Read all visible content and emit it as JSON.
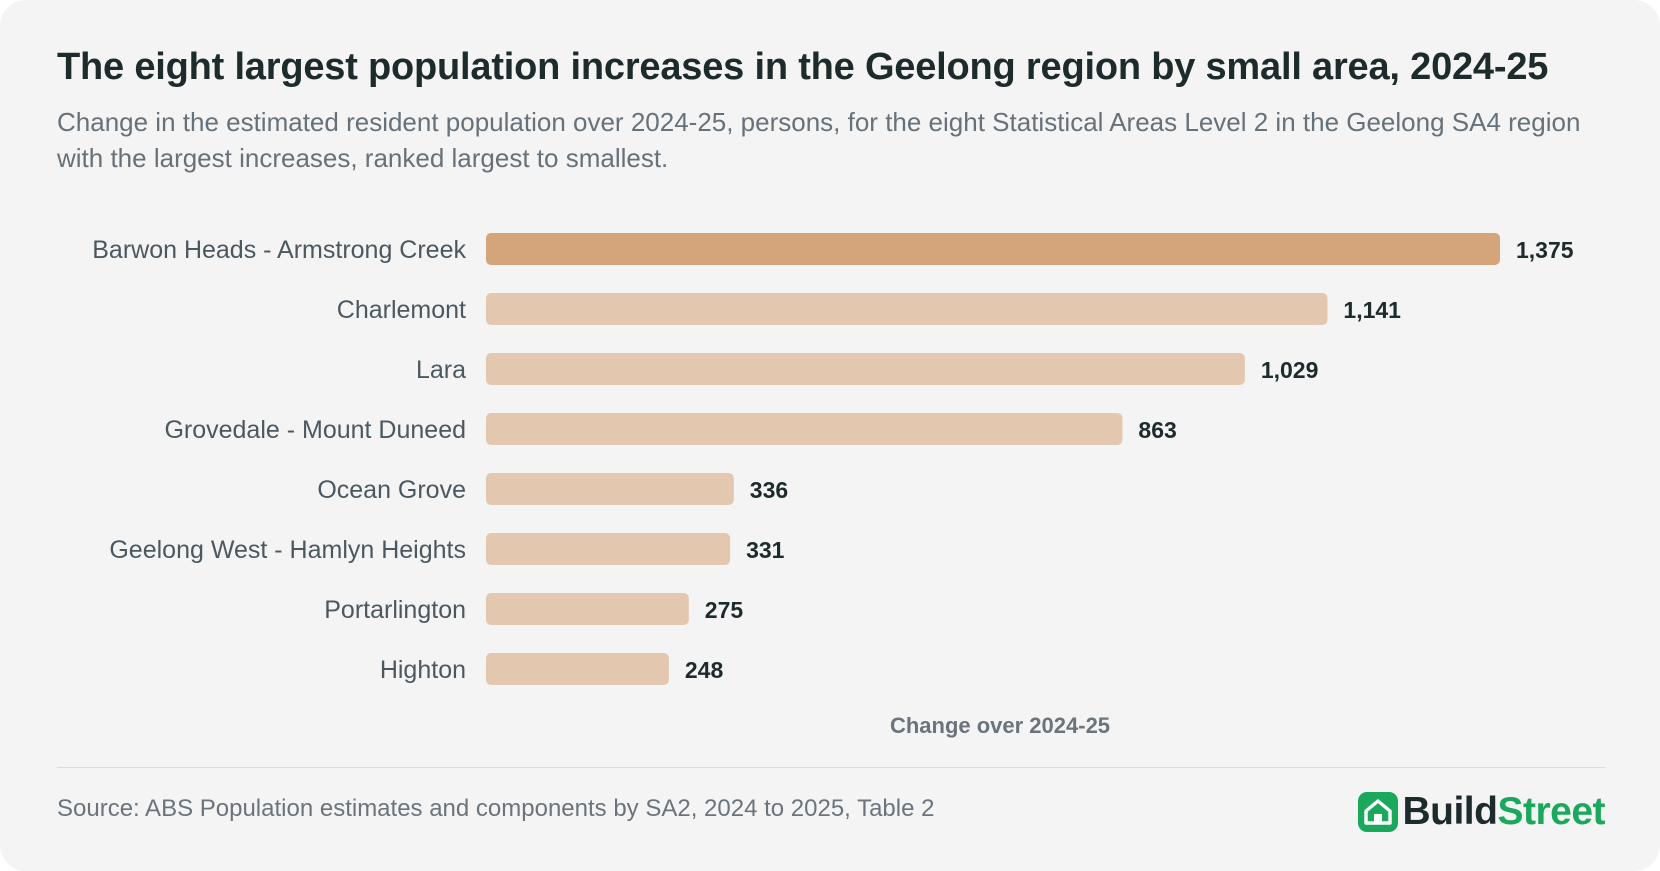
{
  "title": "The eight largest population increases in the Geelong region by small area, 2024-25",
  "subtitle": "Change in the estimated resident population over 2024-25, persons, for the eight Statistical Areas Level 2 in the Geelong SA4 region with the largest increases, ranked largest to smallest.",
  "source": "Source: ABS Population estimates and components by SA2, 2024 to 2025, Table 2",
  "brand": {
    "part1": "Build",
    "part2": "Street",
    "icon": "house-icon",
    "color": "#1aa85c"
  },
  "colors": {
    "highlight_bar": "#d4a57a",
    "bar": "#e3c7ae",
    "background": "#f4f4f4"
  },
  "chart_data": {
    "type": "bar",
    "orientation": "horizontal",
    "title": "The eight largest population increases in the Geelong region by small area, 2024-25",
    "subtitle": "Change in the estimated resident population over 2024-25, persons, for the eight Statistical Areas Level 2 in the Geelong SA4 region with the largest increases, ranked largest to smallest.",
    "xlabel": "Change over 2024-25",
    "ylabel": "",
    "categories": [
      "Barwon Heads - Armstrong Creek",
      "Charlemont",
      "Lara",
      "Grovedale - Mount Duneed",
      "Ocean Grove",
      "Geelong West - Hamlyn Heights",
      "Portarlington",
      "Highton"
    ],
    "values": [
      1375,
      1141,
      1029,
      863,
      336,
      331,
      275,
      248
    ],
    "value_labels": [
      "1,375",
      "1,141",
      "1,029",
      "863",
      "336",
      "331",
      "275",
      "248"
    ],
    "highlighted_category": "Barwon Heads - Armstrong Creek",
    "xlim": [
      0,
      1375
    ],
    "grid": false,
    "legend": "none"
  }
}
